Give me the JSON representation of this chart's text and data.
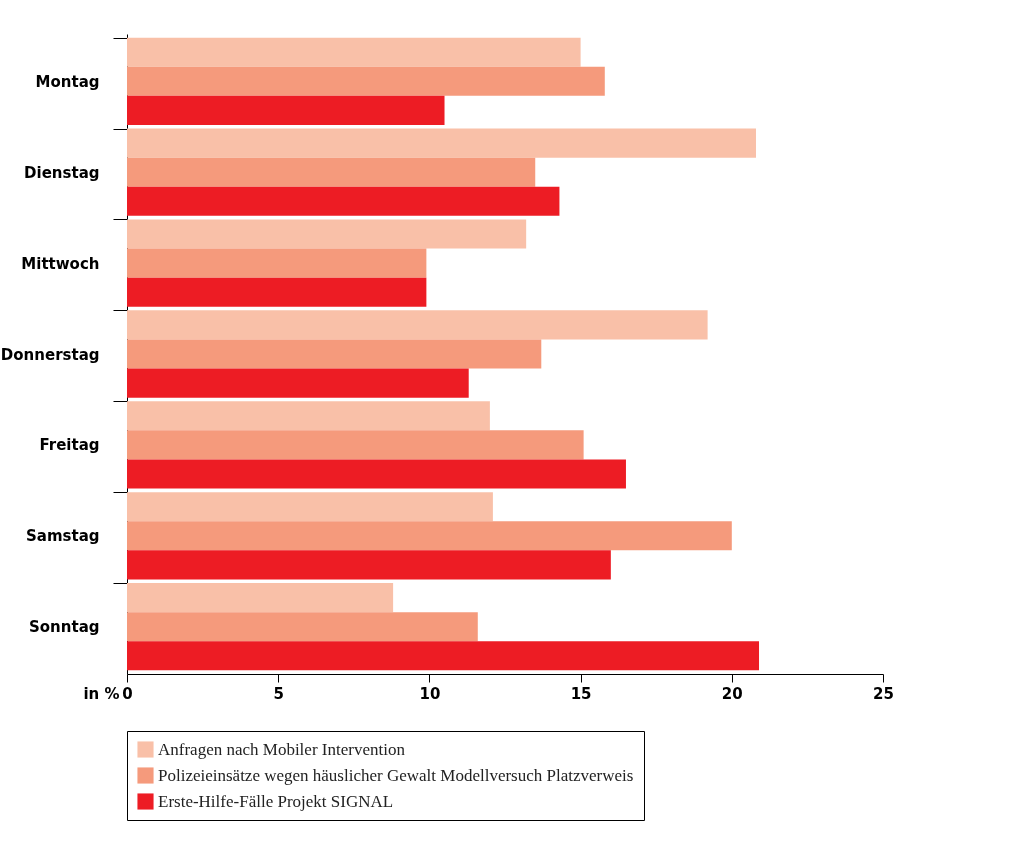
{
  "chart_data": {
    "type": "bar",
    "orientation": "horizontal",
    "xlabel": "in %",
    "categories": [
      "Montag",
      "Dienstag",
      "Mittwoch",
      "Donnerstag",
      "Freitag",
      "Samstag",
      "Sonntag"
    ],
    "series": [
      {
        "name": "Anfragen nach Mobiler Intervention",
        "color": "#f9c0a8",
        "values": [
          15.0,
          20.8,
          13.2,
          19.2,
          12.0,
          12.1,
          8.8
        ]
      },
      {
        "name": "Polizeieinsätze wegen häuslicher Gewalt Modellversuch Platzverweis",
        "color": "#f59a7c",
        "values": [
          15.8,
          13.5,
          9.9,
          13.7,
          15.1,
          20.0,
          11.6
        ]
      },
      {
        "name": "Erste-Hilfe-Fälle Projekt SIGNAL",
        "color": "#ed1c24",
        "values": [
          10.5,
          14.3,
          9.9,
          11.3,
          16.5,
          16.0,
          20.9
        ]
      }
    ],
    "xlim": [
      0,
      25
    ],
    "xticks": [
      0,
      5,
      10,
      15,
      20,
      25
    ],
    "grid": false,
    "legend": "bottom"
  }
}
